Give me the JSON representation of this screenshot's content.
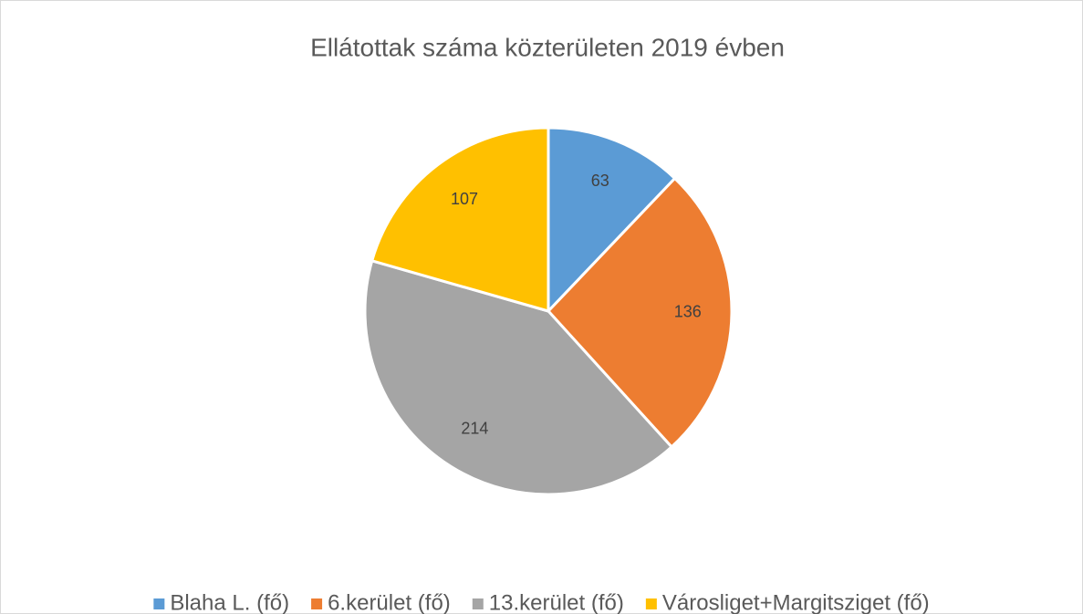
{
  "chart_data": {
    "type": "pie",
    "title": "Ellátottak száma közterületen 2019 évben",
    "categories": [
      "Blaha L. (fő)",
      "6.kerület (fő)",
      "13.kerület (fő)",
      "Városliget+Margitsziget (fő)"
    ],
    "values": [
      63,
      136,
      214,
      107
    ],
    "colors": [
      "#5b9bd5",
      "#ed7d31",
      "#a5a5a5",
      "#ffc000"
    ],
    "legend": "bottom"
  }
}
